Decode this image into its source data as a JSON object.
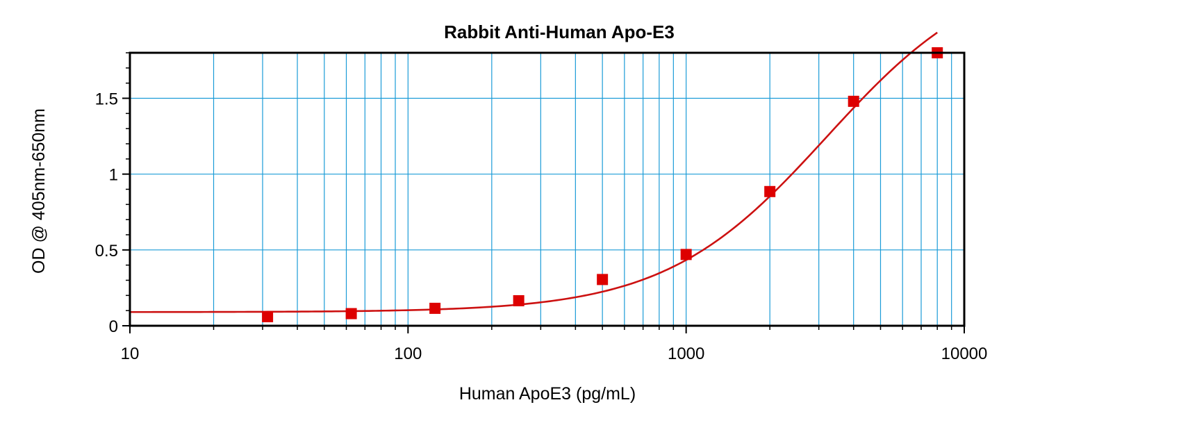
{
  "chart_data": {
    "type": "scatter",
    "title": "Rabbit Anti-Human Apo-E3",
    "xlabel": "Human ApoE3 (pg/mL)",
    "ylabel": "OD @ 405nm-650nm",
    "x_scale": "log",
    "xlim": [
      10,
      10000
    ],
    "ylim": [
      0,
      1.8
    ],
    "x_ticks": [
      10,
      100,
      1000,
      10000
    ],
    "x_tick_labels": [
      "10",
      "100",
      "1000",
      "10000"
    ],
    "y_ticks": [
      0,
      0.5,
      1,
      1.5
    ],
    "y_tick_labels": [
      "0",
      "0.5",
      "1",
      "1.5"
    ],
    "grid": true,
    "colors": {
      "grid": "#1a9bd7",
      "marker": "#dd0000",
      "curve": "#cc1111",
      "frame": "#000000"
    },
    "series": [
      {
        "marker": "square",
        "x": [
          31.25,
          62.5,
          125,
          250,
          500,
          1000,
          2000,
          4000,
          8000
        ],
        "y": [
          0.06,
          0.08,
          0.115,
          0.165,
          0.305,
          0.47,
          0.885,
          1.48,
          1.8
        ]
      }
    ],
    "fit_curve": {
      "model": "4PL",
      "bottom": 0.09,
      "top": 2.4,
      "ec50": 3200,
      "hill": 1.5
    }
  }
}
